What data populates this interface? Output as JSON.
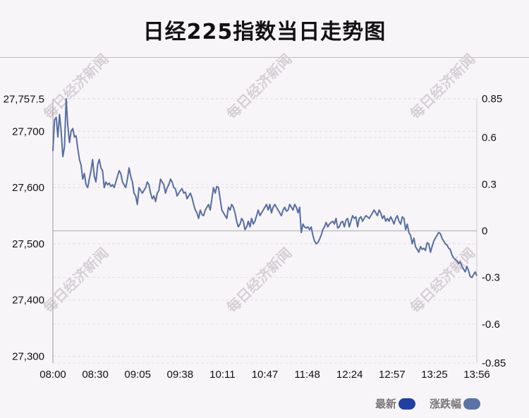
{
  "title": "日经225指数当日走势图",
  "legend": [
    {
      "label": "最新",
      "color": "#1f3fa6"
    },
    {
      "label": "涨跌幅",
      "color": "#5a73a6"
    }
  ],
  "watermark": "每日经济新闻",
  "chart_data": {
    "type": "line",
    "left_axis": {
      "ticks": [
        "27,757.5",
        "27,700",
        "27,600",
        "27,500",
        "27,400",
        "27,300"
      ],
      "range": [
        27288,
        27758
      ]
    },
    "right_axis": {
      "ticks": [
        "0.85",
        "0.6",
        "0.3",
        "0",
        "-0.3",
        "-0.6",
        "-0.85"
      ],
      "range": [
        -0.85,
        0.85
      ]
    },
    "x_ticks": [
      "08:00",
      "08:30",
      "09:05",
      "09:38",
      "10:11",
      "10:47",
      "11:48",
      "12:24",
      "12:57",
      "13:25",
      "13:56"
    ],
    "baseline_pct": 0,
    "series": [
      {
        "values": [
          27665,
          27720,
          27725,
          27690,
          27730,
          27700,
          27655,
          27672,
          27758,
          27710,
          27680,
          27700,
          27705,
          27690,
          27692,
          27670,
          27650,
          27640,
          27615,
          27625,
          27605,
          27600,
          27615,
          27630,
          27650,
          27620,
          27610,
          27640,
          27650,
          27635,
          27630,
          27600,
          27610,
          27605,
          27608,
          27602,
          27605,
          27600,
          27610,
          27620,
          27630,
          27625,
          27610,
          27605,
          27600,
          27615,
          27635,
          27620,
          27610,
          27590,
          27585,
          27570,
          27600,
          27595,
          27590,
          27595,
          27600,
          27610,
          27605,
          27590,
          27580,
          27585,
          27575,
          27590,
          27595,
          27615,
          27610,
          27605,
          27590,
          27600,
          27605,
          27615,
          27610,
          27600,
          27598,
          27585,
          27590,
          27595,
          27598,
          27590,
          27592,
          27580,
          27585,
          27590,
          27582,
          27570,
          27560,
          27555,
          27545,
          27560,
          27552,
          27550,
          27560,
          27565,
          27570,
          27560,
          27580,
          27600,
          27590,
          27602,
          27600,
          27580,
          27560,
          27555,
          27550,
          27545,
          27565,
          27560,
          27570,
          27565,
          27555,
          27540,
          27530,
          27535,
          27545,
          27540,
          27525,
          27530,
          27540,
          27530,
          27545,
          27535,
          27540,
          27550,
          27560,
          27550,
          27555,
          27560,
          27565,
          27570,
          27560,
          27570,
          27555,
          27565,
          27570,
          27565,
          27560,
          27555,
          27550,
          27560,
          27565,
          27558,
          27560,
          27570,
          27565,
          27560,
          27570,
          27565,
          27555,
          27565,
          27520,
          27535,
          27530,
          27528,
          27530,
          27525,
          27530,
          27515,
          27505,
          27500,
          27502,
          27508,
          27515,
          27525,
          27530,
          27538,
          27530,
          27535,
          27538,
          27540,
          27535,
          27545,
          27528,
          27530,
          27538,
          27540,
          27530,
          27542,
          27545,
          27530,
          27540,
          27550,
          27545,
          27548,
          27530,
          27545,
          27548,
          27540,
          27545,
          27550,
          27548,
          27545,
          27550,
          27555,
          27560,
          27555,
          27550,
          27560,
          27555,
          27545,
          27550,
          27540,
          27545,
          27540,
          27548,
          27542,
          27535,
          27545,
          27550,
          27540,
          27535,
          27548,
          27545,
          27525,
          27535,
          27520,
          27515,
          27500,
          27510,
          27495,
          27490,
          27485,
          27495,
          27490,
          27492,
          27488,
          27502,
          27500,
          27485,
          27495,
          27505,
          27510,
          27515,
          27520,
          27518,
          27510,
          27505,
          27500,
          27498,
          27492,
          27490,
          27480,
          27475,
          27472,
          27470,
          27465,
          27468,
          27460,
          27455,
          27450,
          27460,
          27452,
          27442,
          27440,
          27445,
          27450,
          27443
        ]
      }
    ]
  }
}
